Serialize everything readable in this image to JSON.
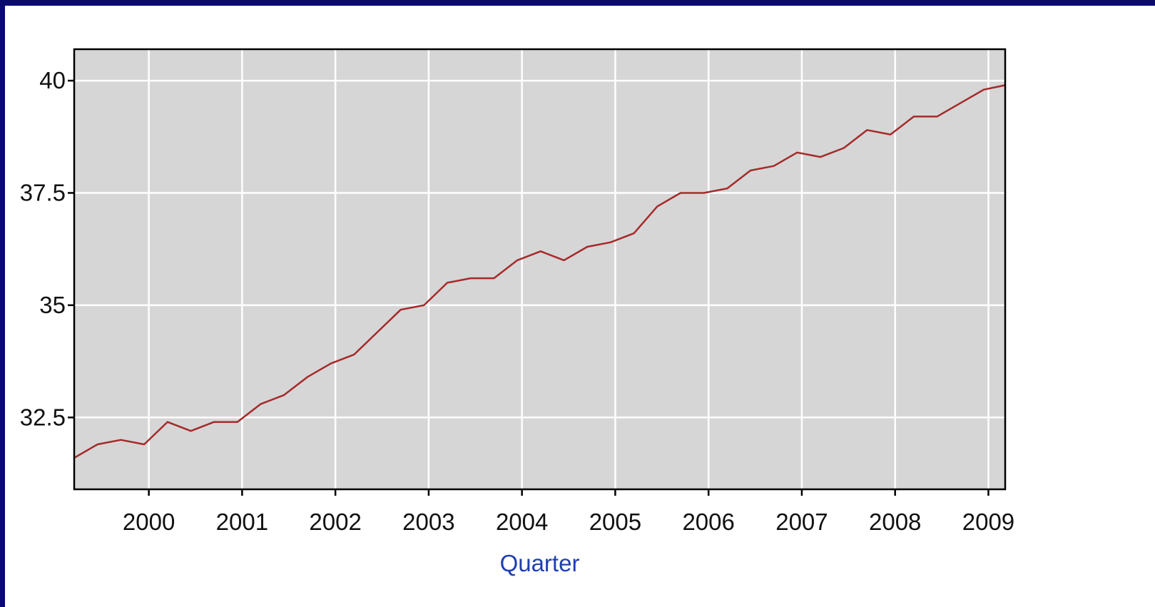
{
  "colors": {
    "frame": "#0a0a6e",
    "plot_background": "#d6d6d6",
    "gridline": "#ffffff",
    "series_line": "#a52a2a",
    "axis_title": "#1f3fb0"
  },
  "chart_data": {
    "type": "line",
    "title": "",
    "xlabel": "Quarter",
    "ylabel": "",
    "xlim": [
      1999.2,
      2009.18
    ],
    "ylim": [
      30.9,
      40.7
    ],
    "y_ticks": [
      32.5,
      35,
      37.5,
      40
    ],
    "y_tick_labels": [
      "32.5",
      "35",
      "37.5",
      "40"
    ],
    "x_ticks": [
      2000,
      2001,
      2002,
      2003,
      2004,
      2005,
      2006,
      2007,
      2008,
      2009
    ],
    "x_tick_labels": [
      "2000",
      "2001",
      "2002",
      "2003",
      "2004",
      "2005",
      "2006",
      "2007",
      "2008",
      "2009"
    ],
    "grid": true,
    "legend": "none",
    "series": [
      {
        "x": [
          1999.2,
          1999.45,
          1999.7,
          1999.95,
          2000.2,
          2000.45,
          2000.7,
          2000.95,
          2001.2,
          2001.45,
          2001.7,
          2001.95,
          2002.2,
          2002.45,
          2002.7,
          2002.95,
          2003.2,
          2003.45,
          2003.7,
          2003.95,
          2004.2,
          2004.45,
          2004.7,
          2004.95,
          2005.2,
          2005.45,
          2005.7,
          2005.95,
          2006.2,
          2006.45,
          2006.7,
          2006.95,
          2007.2,
          2007.45,
          2007.7,
          2007.95,
          2008.2,
          2008.45,
          2008.7,
          2008.95,
          2009.18
        ],
        "values": [
          31.6,
          31.9,
          32.0,
          31.9,
          32.4,
          32.2,
          32.4,
          32.4,
          32.8,
          33.0,
          33.4,
          33.7,
          33.9,
          34.4,
          34.9,
          35.0,
          35.5,
          35.6,
          35.6,
          36.0,
          36.2,
          36.0,
          36.3,
          36.4,
          36.6,
          37.2,
          37.5,
          37.5,
          37.6,
          38.0,
          38.1,
          38.4,
          38.3,
          38.5,
          38.9,
          38.8,
          39.2,
          39.2,
          39.5,
          39.8,
          39.9
        ]
      }
    ]
  }
}
